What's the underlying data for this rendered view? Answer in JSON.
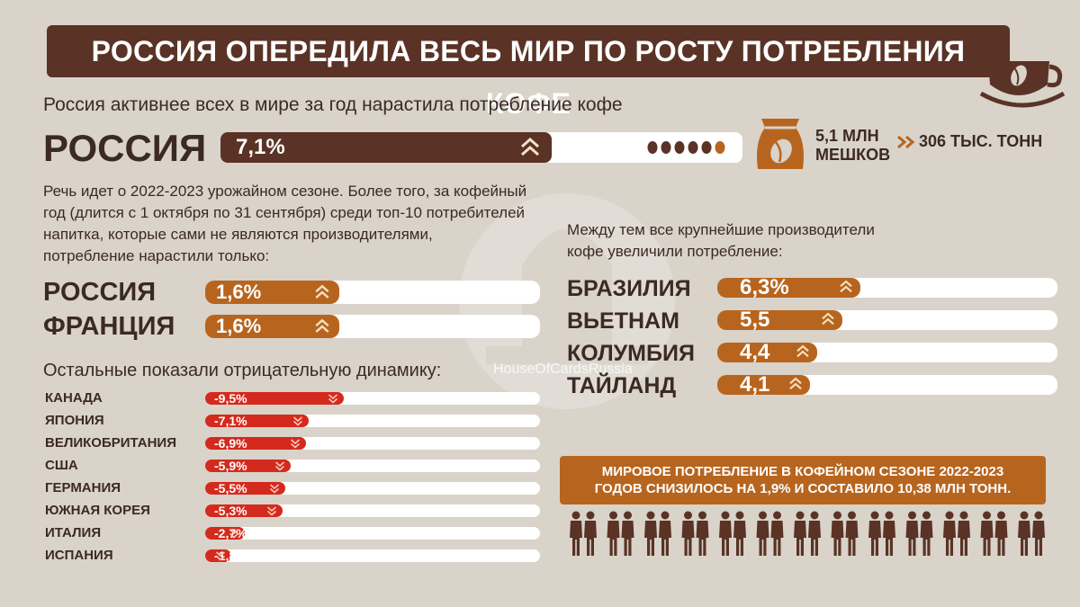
{
  "title": "РОССИЯ ОПЕРЕДИЛА ВЕСЬ МИР ПО РОСТУ ПОТРЕБЛЕНИЯ КОФЕ",
  "subtitle": "Россия активнее всех в мире за год нарастила потребление кофе",
  "russia_main": {
    "label": "РОССИЯ",
    "value_text": "7,1%",
    "value": 7.1
  },
  "bag": {
    "line1": "5,1 МЛН",
    "line2": "МЕШКОВ",
    "tons": "306 ТЫС. ТОНН"
  },
  "paragraph": [
    "Речь идет о 2022-2023 урожайном сезоне. Более того, за кофейный",
    "год (длится с 1 октября по 31 сентября) среди топ-10 потребителей",
    "напитка, которые сами не являются производителями,",
    "потребление нарастили только:"
  ],
  "right_intro": [
    "Между тем все крупнейшие производители",
    "кофе увеличили потребление:"
  ],
  "negative_heading": "Остальные показали отрицательную динамику:",
  "banner": [
    "МИРОВОЕ ПОТРЕБЛЕНИЕ В КОФЕЙНОМ СЕЗОНЕ 2022-2023",
    "ГОДОВ СНИЗИЛОСЬ НА 1,9% И СОСТАВИЛО 10,38 МЛН ТОНН."
  ],
  "watermark": "HouseOfCardsRussia",
  "colors": {
    "dark_brown": "#5a3326",
    "orange": "#b7651e",
    "red": "#d42a1d",
    "track": "#ffffff",
    "background": "#d9d3ca"
  },
  "chart_data": [
    {
      "type": "bar",
      "categories": [
        "РОССИЯ"
      ],
      "values": [
        7.1
      ],
      "labels": [
        "7,1%"
      ]
    },
    {
      "type": "bar",
      "categories": [
        "РОССИЯ",
        "ФРАНЦИЯ"
      ],
      "values": [
        1.6,
        1.6
      ],
      "labels": [
        "1,6%",
        "1,6%"
      ]
    },
    {
      "type": "bar",
      "categories": [
        "КАНАДА",
        "ЯПОНИЯ",
        "ВЕЛИКОБРИТАНИЯ",
        "США",
        "ГЕРМАНИЯ",
        "ЮЖНАЯ КОРЕЯ",
        "ИТАЛИЯ",
        "ИСПАНИЯ"
      ],
      "values": [
        -9.5,
        -7.1,
        -6.9,
        -5.9,
        -5.5,
        -5.3,
        -2.7,
        -1.8
      ],
      "labels": [
        "-9,5%",
        "-7,1%",
        "-6,9%",
        "-5,9%",
        "-5,5%",
        "-5,3%",
        "-2,7%",
        "-1,8%"
      ]
    },
    {
      "type": "bar",
      "categories": [
        "БРАЗИЛИЯ",
        "ВЬЕТНАМ",
        "КОЛУМБИЯ",
        "ТАЙЛАНД"
      ],
      "values": [
        6.3,
        5.5,
        4.4,
        4.1
      ],
      "labels": [
        "6,3%",
        "5,5",
        "4,4",
        "4,1"
      ]
    }
  ]
}
